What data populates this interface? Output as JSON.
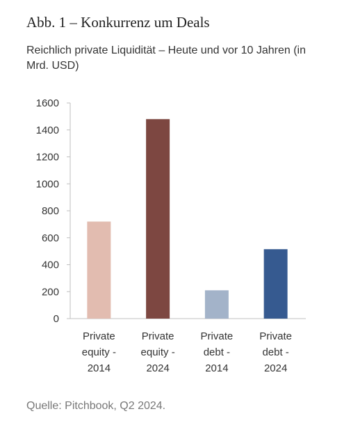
{
  "header": {
    "title": "Abb. 1 – Konkurrenz um Deals",
    "subtitle": "Reichlich private Liquidität – Heute und vor 10 Jahren (in Mrd. USD)"
  },
  "footer": {
    "source": "Quelle: Pitchbook, Q2 2024."
  },
  "chart_data": {
    "type": "bar",
    "categories": [
      [
        "Private",
        "equity -",
        "2014"
      ],
      [
        "Private",
        "equity -",
        "2024"
      ],
      [
        "Private",
        "debt -",
        "2014"
      ],
      [
        "Private",
        "debt -",
        "2024"
      ]
    ],
    "values": [
      720,
      1480,
      210,
      515
    ],
    "colors": [
      "#e2bcb0",
      "#7d4741",
      "#a3b3c9",
      "#365a90"
    ],
    "ylim": [
      0,
      1600
    ],
    "yticks": [
      0,
      200,
      400,
      600,
      800,
      1000,
      1200,
      1400,
      1600
    ],
    "grid": false,
    "legend": false
  }
}
